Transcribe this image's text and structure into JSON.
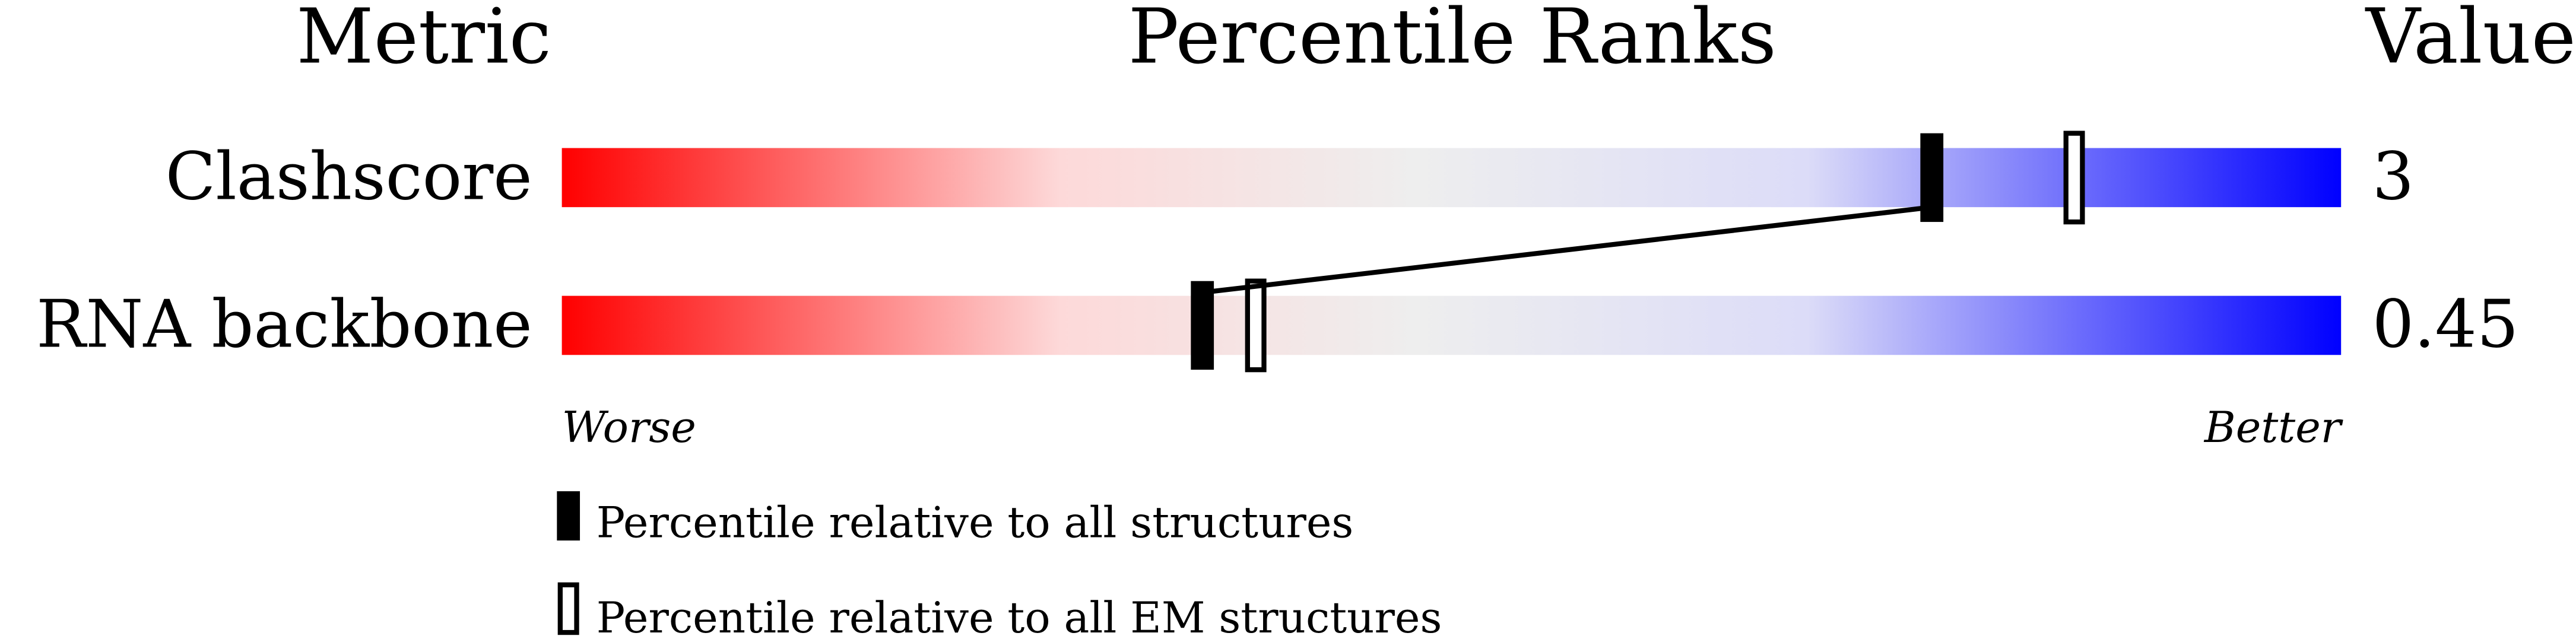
{
  "chart_data": {
    "type": "bar",
    "headers": {
      "metric": "Metric",
      "ranks": "Percentile Ranks",
      "value": "Value"
    },
    "xlim": [
      0,
      100
    ],
    "rows": [
      {
        "metric": "Clashscore",
        "value": "3",
        "percentile_all": 77,
        "percentile_em": 85
      },
      {
        "metric": "RNA backbone",
        "value": "0.45",
        "percentile_all": 36,
        "percentile_em": 39
      }
    ],
    "axis_labels": {
      "worse": "Worse",
      "better": "Better"
    },
    "legend": [
      {
        "marker": "filled",
        "label": "Percentile relative to all structures"
      },
      {
        "marker": "hollow",
        "label": "Percentile relative to all EM structures"
      }
    ],
    "gradient_colors": [
      "#ff0000",
      "#fdd9d9",
      "#eeeeee",
      "#dcdcf8",
      "#0000ff"
    ]
  }
}
